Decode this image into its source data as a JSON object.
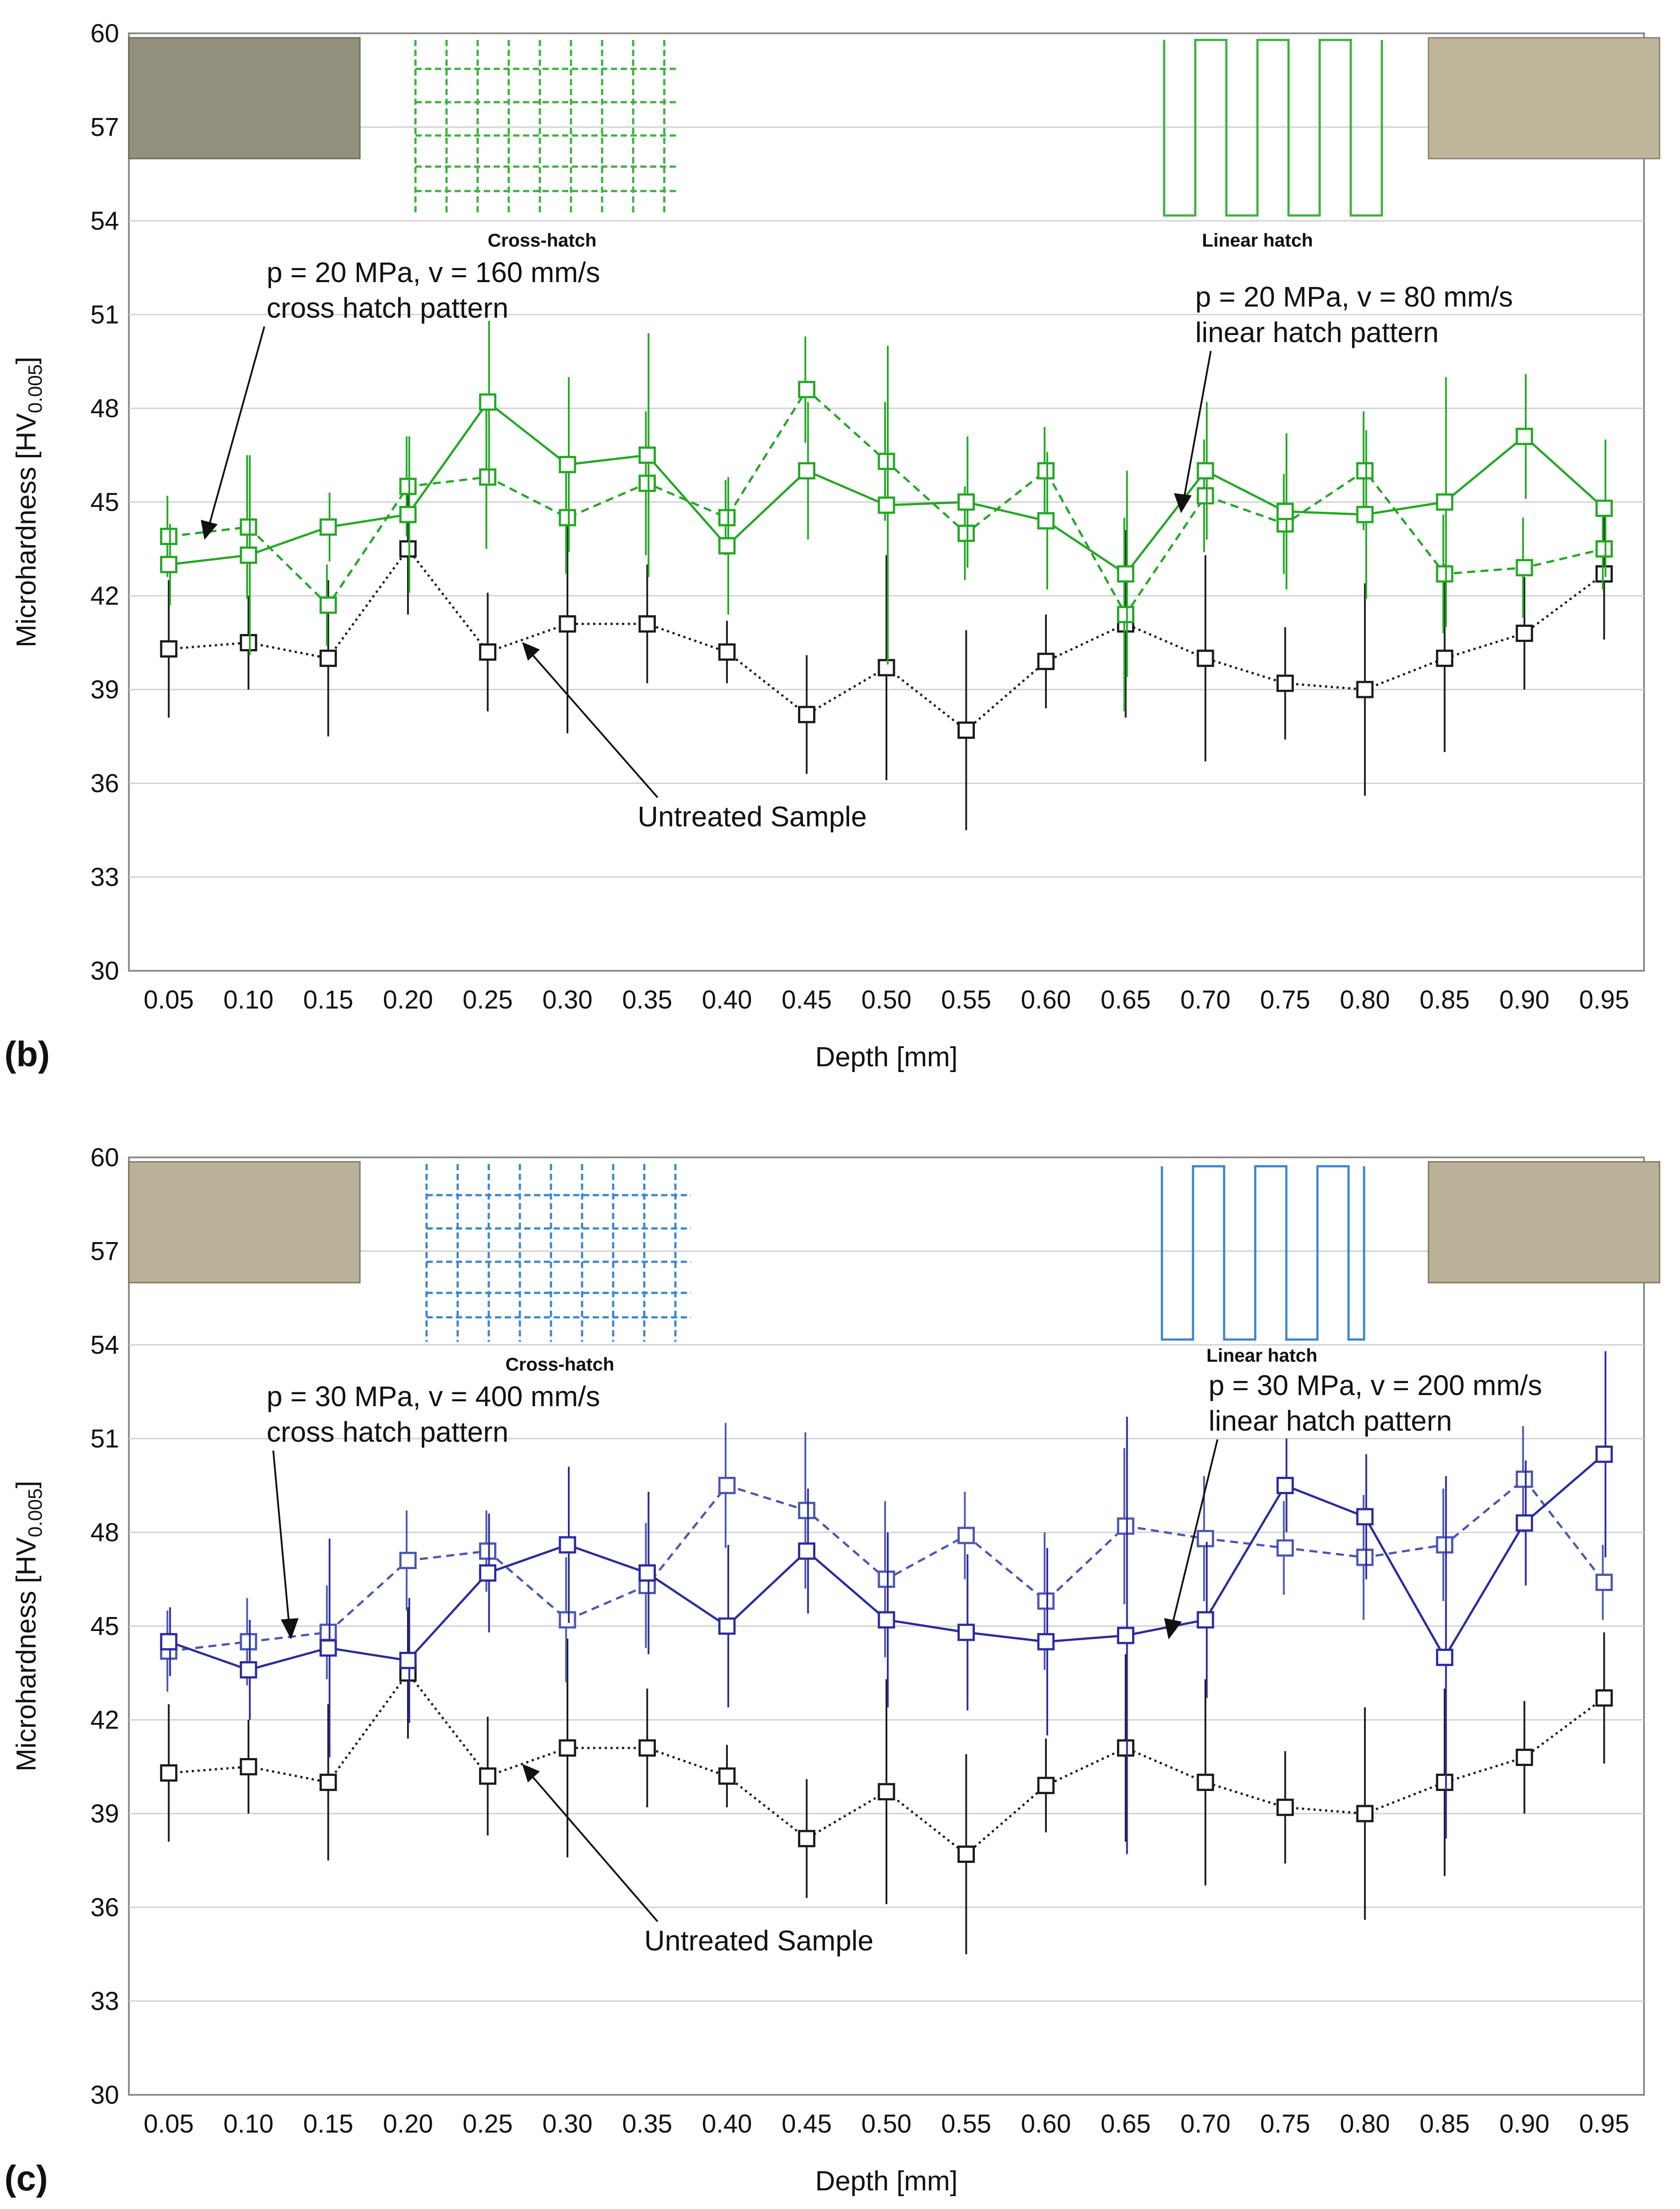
{
  "chart_data": [
    {
      "type": "line",
      "panel_label": "(b)",
      "xlabel": "Depth [mm]",
      "ylabel_main": "Microhardness [HV",
      "ylabel_sub": "0.005",
      "ylabel_close": "]",
      "ylim": [
        30,
        60
      ],
      "yticks": [
        "30",
        "33",
        "36",
        "39",
        "42",
        "45",
        "48",
        "51",
        "54",
        "57",
        "60"
      ],
      "categories": [
        "0.05",
        "0.10",
        "0.15",
        "0.20",
        "0.25",
        "0.30",
        "0.35",
        "0.40",
        "0.45",
        "0.50",
        "0.55",
        "0.60",
        "0.65",
        "0.70",
        "0.75",
        "0.80",
        "0.85",
        "0.90",
        "0.95"
      ],
      "series": [
        {
          "name": "Untreated Sample",
          "color": "#1a1a1a",
          "dash": "dotted",
          "values": [
            40.3,
            40.5,
            40.0,
            43.5,
            40.2,
            41.1,
            41.1,
            40.2,
            38.2,
            39.7,
            37.7,
            39.9,
            41.1,
            40.0,
            39.2,
            39.0,
            40.0,
            40.8,
            42.7
          ],
          "errors": [
            2.2,
            1.5,
            2.5,
            2.1,
            1.9,
            3.5,
            1.9,
            1.0,
            1.9,
            3.6,
            3.2,
            1.5,
            3.0,
            3.3,
            1.8,
            3.4,
            3.0,
            1.8,
            2.1
          ]
        },
        {
          "name": "p = 20 MPa, v = 160 mm/s cross hatch pattern",
          "color": "#23a823",
          "dash": "dashed",
          "values": [
            43.9,
            44.2,
            41.7,
            45.5,
            45.8,
            44.5,
            45.6,
            44.5,
            48.6,
            46.3,
            44.0,
            46.0,
            41.4,
            45.2,
            44.3,
            46.0,
            42.7,
            42.9,
            43.5
          ],
          "errors": [
            1.3,
            2.3,
            1.3,
            1.6,
            2.3,
            1.8,
            2.3,
            1.2,
            1.7,
            1.9,
            1.5,
            1.4,
            3.1,
            1.8,
            1.6,
            1.9,
            1.9,
            1.6,
            1.3
          ]
        },
        {
          "name": "p = 20 MPa, v = 80 mm/s linear hatch pattern",
          "color": "#23a823",
          "dash": "solid",
          "values": [
            43.0,
            43.3,
            44.2,
            44.6,
            48.2,
            46.2,
            46.5,
            43.6,
            46.0,
            44.9,
            45.0,
            44.4,
            42.7,
            46.0,
            44.7,
            44.6,
            45.0,
            47.1,
            44.8
          ],
          "errors": [
            1.3,
            3.2,
            1.1,
            2.5,
            2.6,
            2.8,
            3.9,
            2.2,
            2.2,
            5.1,
            2.1,
            2.2,
            3.3,
            2.2,
            2.5,
            2.7,
            4.0,
            2.0,
            2.2
          ]
        }
      ],
      "annotations": {
        "cross_line1": "p = 20 MPa, v = 160 mm/s",
        "cross_line2": "cross hatch pattern",
        "linear_line1": "p = 20 MPa, v = 80 mm/s",
        "linear_line2": "linear hatch pattern",
        "untreated": "Untreated Sample"
      },
      "pattern_labels": {
        "cross": "Cross-hatch",
        "linear": "Linear hatch"
      }
    },
    {
      "type": "line",
      "panel_label": "(c)",
      "xlabel": "Depth [mm]",
      "ylabel_main": "Microhardness [HV",
      "ylabel_sub": "0.005",
      "ylabel_close": "]",
      "ylim": [
        30,
        60
      ],
      "yticks": [
        "30",
        "33",
        "36",
        "39",
        "42",
        "45",
        "48",
        "51",
        "54",
        "57",
        "60"
      ],
      "categories": [
        "0.05",
        "0.10",
        "0.15",
        "0.20",
        "0.25",
        "0.30",
        "0.35",
        "0.40",
        "0.45",
        "0.50",
        "0.55",
        "0.60",
        "0.65",
        "0.70",
        "0.75",
        "0.80",
        "0.85",
        "0.90",
        "0.95"
      ],
      "series": [
        {
          "name": "Untreated Sample",
          "color": "#1a1a1a",
          "dash": "dotted",
          "values": [
            40.3,
            40.5,
            40.0,
            43.5,
            40.2,
            41.1,
            41.1,
            40.2,
            38.2,
            39.7,
            37.7,
            39.9,
            41.1,
            40.0,
            39.2,
            39.0,
            40.0,
            40.8,
            42.7
          ],
          "errors": [
            2.2,
            1.5,
            2.5,
            2.1,
            1.9,
            3.5,
            1.9,
            1.0,
            1.9,
            3.6,
            3.2,
            1.5,
            3.0,
            3.3,
            1.8,
            3.4,
            3.0,
            1.8,
            2.1
          ]
        },
        {
          "name": "p = 30 MPa, v = 400 mm/s cross hatch pattern",
          "color": "#4a56b5",
          "dash": "dashed",
          "values": [
            44.2,
            44.5,
            44.8,
            47.1,
            47.4,
            45.2,
            46.3,
            49.5,
            48.7,
            46.5,
            47.9,
            45.8,
            48.2,
            47.8,
            47.5,
            47.2,
            47.6,
            49.7,
            46.4
          ],
          "errors": [
            1.3,
            1.4,
            1.5,
            1.6,
            1.3,
            2.0,
            2.0,
            2.0,
            2.5,
            2.5,
            1.4,
            2.2,
            2.5,
            2.0,
            1.5,
            2.0,
            1.8,
            1.7,
            1.2
          ]
        },
        {
          "name": "p = 30 MPa, v = 200 mm/s linear hatch pattern",
          "color": "#2a2ba0",
          "dash": "solid",
          "values": [
            44.5,
            43.6,
            44.3,
            43.9,
            46.7,
            47.6,
            46.7,
            45.0,
            47.4,
            45.2,
            44.8,
            44.5,
            44.7,
            45.2,
            49.5,
            48.5,
            44.0,
            48.3,
            50.5
          ],
          "errors": [
            1.1,
            1.6,
            3.5,
            2.0,
            1.9,
            2.5,
            2.6,
            2.6,
            2.0,
            2.8,
            2.5,
            3.0,
            7.0,
            2.5,
            1.5,
            2.0,
            5.8,
            2.0,
            3.3
          ]
        }
      ],
      "annotations": {
        "cross_line1": "p = 30 MPa, v = 400 mm/s",
        "cross_line2": "cross hatch pattern",
        "linear_line1": "p = 30 MPa, v = 200 mm/s",
        "linear_line2": "linear hatch pattern",
        "untreated": "Untreated Sample"
      },
      "pattern_labels": {
        "cross": "Cross-hatch",
        "linear": "Linear hatch"
      }
    }
  ]
}
